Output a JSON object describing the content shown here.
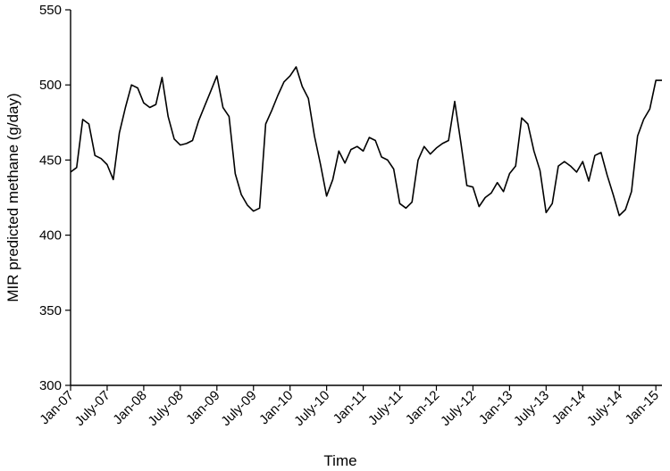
{
  "chart_data": {
    "type": "line",
    "title": "",
    "xlabel": "Time",
    "ylabel": "MIR predicted methane (g/day)",
    "ylim": [
      300,
      550
    ],
    "yticks": [
      300,
      350,
      400,
      450,
      500,
      550
    ],
    "xlim": [
      "2007-01",
      "2015-02"
    ],
    "xtick_labels": [
      "Jan-07",
      "July-07",
      "Jan-08",
      "July-08",
      "Jan-09",
      "July-09",
      "Jan-10",
      "July-10",
      "Jan-11",
      "July-11",
      "Jan-12",
      "July-12",
      "Jan-13",
      "July-13",
      "Jan-14",
      "July-14",
      "Jan-15"
    ],
    "grid": false,
    "legend": "none",
    "series": [
      {
        "color": "#000000",
        "x": [
          "2007-01",
          "2007-02",
          "2007-03",
          "2007-04",
          "2007-05",
          "2007-06",
          "2007-07",
          "2007-08",
          "2007-09",
          "2007-10",
          "2007-11",
          "2007-12",
          "2008-01",
          "2008-02",
          "2008-03",
          "2008-04",
          "2008-05",
          "2008-06",
          "2008-07",
          "2008-08",
          "2008-09",
          "2008-10",
          "2008-11",
          "2008-12",
          "2009-01",
          "2009-02",
          "2009-03",
          "2009-04",
          "2009-05",
          "2009-06",
          "2009-07",
          "2009-08",
          "2009-09",
          "2009-10",
          "2009-11",
          "2009-12",
          "2010-01",
          "2010-02",
          "2010-03",
          "2010-04",
          "2010-05",
          "2010-06",
          "2010-07",
          "2010-08",
          "2010-09",
          "2010-10",
          "2010-11",
          "2010-12",
          "2011-01",
          "2011-02",
          "2011-03",
          "2011-04",
          "2011-05",
          "2011-06",
          "2011-07",
          "2011-08",
          "2011-09",
          "2011-10",
          "2011-11",
          "2011-12",
          "2012-01",
          "2012-02",
          "2012-03",
          "2012-04",
          "2012-05",
          "2012-06",
          "2012-07",
          "2012-08",
          "2012-09",
          "2012-10",
          "2012-11",
          "2012-12",
          "2013-01",
          "2013-02",
          "2013-03",
          "2013-04",
          "2013-05",
          "2013-06",
          "2013-07",
          "2013-08",
          "2013-09",
          "2013-10",
          "2013-11",
          "2013-12",
          "2014-01",
          "2014-02",
          "2014-03",
          "2014-04",
          "2014-05",
          "2014-06",
          "2014-07",
          "2014-08",
          "2014-09",
          "2014-10",
          "2014-11",
          "2014-12",
          "2015-01",
          "2015-02"
        ],
        "values": [
          442,
          445,
          477,
          474,
          453,
          451,
          447,
          437,
          468,
          485,
          500,
          498,
          488,
          485,
          487,
          505,
          479,
          464,
          460,
          461,
          463,
          476,
          486,
          496,
          506,
          485,
          479,
          441,
          427,
          420,
          416,
          418,
          474,
          483,
          493,
          502,
          506,
          512,
          499,
          491,
          466,
          447,
          426,
          437,
          456,
          448,
          457,
          459,
          456,
          465,
          463,
          452,
          450,
          444,
          421,
          418,
          422,
          450,
          459,
          454,
          458,
          461,
          463,
          489,
          462,
          433,
          432,
          419,
          425,
          428,
          435,
          429,
          441,
          446,
          478,
          474,
          456,
          443,
          415,
          421,
          446,
          449,
          446,
          442,
          449,
          436,
          453,
          455,
          440,
          427,
          413,
          417,
          429,
          466,
          477,
          484,
          503,
          503
        ]
      }
    ]
  }
}
